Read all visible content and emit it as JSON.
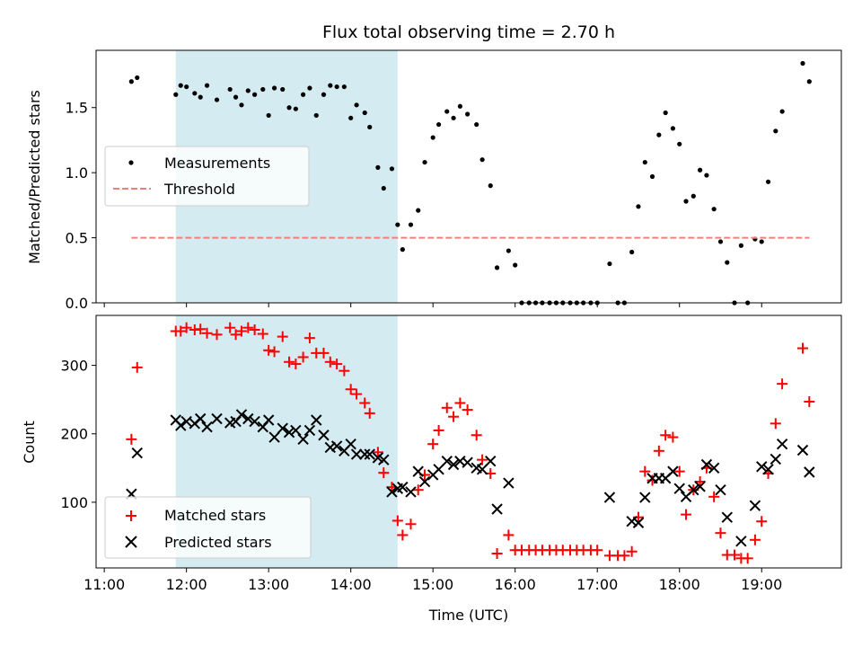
{
  "chart_data": [
    {
      "type": "scatter",
      "title": "Flux total observing time = 2.70 h",
      "xlabel": "",
      "ylabel": "Matched/Predicted stars",
      "ylim": [
        0,
        1.94
      ],
      "yticks": [
        0.0,
        0.5,
        1.0,
        1.5
      ],
      "ytick_labels": [
        "0.0",
        "0.5",
        "1.0",
        "1.5"
      ],
      "xlim_hours": [
        10.9,
        19.97
      ],
      "xticks_hours": [
        11,
        12,
        13,
        14,
        15,
        16,
        17,
        18,
        19
      ],
      "shaded_span_hours": [
        11.87,
        14.57
      ],
      "shaded_color": "#d3ebf1",
      "legend_position": "center-left",
      "series": [
        {
          "name": "Measurements",
          "marker": "dot",
          "color": "#000000",
          "x": [
            11.33,
            11.4,
            11.87,
            11.93,
            12.0,
            12.1,
            12.17,
            12.25,
            12.37,
            12.53,
            12.6,
            12.67,
            12.75,
            12.83,
            12.93,
            13.0,
            13.07,
            13.17,
            13.25,
            13.33,
            13.42,
            13.5,
            13.58,
            13.67,
            13.75,
            13.83,
            13.92,
            14.0,
            14.07,
            14.17,
            14.23,
            14.33,
            14.4,
            14.5,
            14.57,
            14.63,
            14.73,
            14.82,
            14.9,
            15.0,
            15.07,
            15.17,
            15.25,
            15.33,
            15.42,
            15.53,
            15.6,
            15.7,
            15.78,
            15.92,
            16.0,
            16.08,
            16.17,
            16.25,
            16.33,
            16.42,
            16.5,
            16.58,
            16.67,
            16.75,
            16.83,
            16.92,
            17.0,
            17.15,
            17.25,
            17.33,
            17.42,
            17.5,
            17.58,
            17.67,
            17.75,
            17.83,
            17.92,
            18.0,
            18.08,
            18.17,
            18.25,
            18.33,
            18.42,
            18.5,
            18.58,
            18.67,
            18.75,
            18.83,
            18.92,
            19.0,
            19.08,
            19.17,
            19.25,
            19.5,
            19.58
          ],
          "y": [
            1.7,
            1.73,
            1.6,
            1.67,
            1.66,
            1.61,
            1.58,
            1.67,
            1.56,
            1.64,
            1.58,
            1.52,
            1.63,
            1.6,
            1.64,
            1.44,
            1.65,
            1.64,
            1.5,
            1.49,
            1.6,
            1.65,
            1.44,
            1.6,
            1.67,
            1.66,
            1.66,
            1.42,
            1.52,
            1.46,
            1.35,
            1.04,
            0.88,
            1.03,
            0.6,
            0.41,
            0.6,
            0.71,
            1.08,
            1.27,
            1.37,
            1.47,
            1.42,
            1.51,
            1.45,
            1.37,
            1.1,
            0.9,
            0.27,
            0.4,
            0.29,
            0.0,
            0.0,
            0.0,
            0.0,
            0.0,
            0.0,
            0.0,
            0.0,
            0.0,
            0.0,
            0.0,
            0.0,
            0.3,
            0.0,
            0.0,
            0.39,
            0.74,
            1.08,
            0.97,
            1.29,
            1.46,
            1.34,
            1.22,
            0.78,
            0.82,
            1.02,
            0.98,
            0.72,
            0.47,
            0.31,
            0.0,
            0.44,
            0.0,
            0.49,
            0.47,
            0.93,
            1.32,
            1.47,
            1.84,
            1.7
          ]
        },
        {
          "name": "Threshold",
          "marker": "dashed-line",
          "color": "#f08080",
          "x": [
            11.33,
            19.58
          ],
          "y": [
            0.5,
            0.5
          ]
        }
      ]
    },
    {
      "type": "scatter",
      "xlabel": "Time (UTC)",
      "ylabel": "Count",
      "ylim": [
        4,
        373
      ],
      "yticks": [
        100,
        200,
        300
      ],
      "ytick_labels": [
        "100",
        "200",
        "300"
      ],
      "xlim_hours": [
        10.9,
        19.97
      ],
      "xticks_hours": [
        11,
        12,
        13,
        14,
        15,
        16,
        17,
        18,
        19
      ],
      "xtick_labels": [
        "11:00",
        "12:00",
        "13:00",
        "14:00",
        "15:00",
        "16:00",
        "17:00",
        "18:00",
        "19:00"
      ],
      "shaded_span_hours": [
        11.87,
        14.57
      ],
      "shaded_color": "#d3ebf1",
      "legend_position": "lower-left",
      "series": [
        {
          "name": "Matched stars",
          "marker": "plus",
          "color": "#ff0000",
          "x": [
            11.33,
            11.4,
            11.87,
            11.93,
            12.0,
            12.1,
            12.17,
            12.25,
            12.37,
            12.53,
            12.6,
            12.67,
            12.75,
            12.83,
            12.93,
            13.0,
            13.07,
            13.17,
            13.25,
            13.33,
            13.42,
            13.5,
            13.58,
            13.67,
            13.75,
            13.83,
            13.92,
            14.0,
            14.07,
            14.17,
            14.23,
            14.33,
            14.4,
            14.5,
            14.57,
            14.63,
            14.73,
            14.82,
            14.9,
            15.0,
            15.07,
            15.17,
            15.25,
            15.33,
            15.42,
            15.53,
            15.6,
            15.7,
            15.78,
            15.92,
            16.0,
            16.08,
            16.17,
            16.25,
            16.33,
            16.42,
            16.5,
            16.58,
            16.67,
            16.75,
            16.83,
            16.92,
            17.0,
            17.15,
            17.25,
            17.33,
            17.42,
            17.5,
            17.58,
            17.67,
            17.75,
            17.83,
            17.92,
            18.0,
            18.08,
            18.17,
            18.25,
            18.33,
            18.42,
            18.5,
            18.58,
            18.67,
            18.75,
            18.83,
            18.92,
            19.0,
            19.08,
            19.17,
            19.25,
            19.5,
            19.58
          ],
          "y": [
            192,
            297,
            350,
            350,
            355,
            352,
            353,
            347,
            345,
            355,
            345,
            350,
            355,
            352,
            346,
            322,
            320,
            342,
            305,
            302,
            312,
            340,
            318,
            318,
            305,
            302,
            292,
            265,
            258,
            245,
            230,
            173,
            143,
            122,
            73,
            52,
            68,
            118,
            140,
            185,
            205,
            238,
            225,
            245,
            235,
            198,
            162,
            142,
            25,
            52,
            30,
            30,
            30,
            30,
            30,
            30,
            30,
            30,
            30,
            30,
            30,
            30,
            30,
            22,
            22,
            22,
            28,
            78,
            145,
            132,
            175,
            198,
            195,
            145,
            82,
            118,
            130,
            150,
            108,
            55,
            23,
            23,
            18,
            18,
            45,
            72,
            142,
            215,
            273,
            325,
            247
          ]
        },
        {
          "name": "Predicted stars",
          "marker": "x",
          "color": "#000000",
          "x": [
            11.33,
            11.4,
            11.87,
            11.93,
            12.0,
            12.1,
            12.17,
            12.25,
            12.37,
            12.53,
            12.6,
            12.67,
            12.75,
            12.83,
            12.93,
            13.0,
            13.07,
            13.17,
            13.25,
            13.33,
            13.42,
            13.5,
            13.58,
            13.67,
            13.75,
            13.83,
            13.92,
            14.0,
            14.07,
            14.17,
            14.23,
            14.33,
            14.4,
            14.5,
            14.57,
            14.63,
            14.73,
            14.82,
            14.9,
            15.0,
            15.07,
            15.17,
            15.25,
            15.33,
            15.42,
            15.53,
            15.6,
            15.7,
            15.78,
            15.92,
            17.15,
            17.42,
            17.5,
            17.58,
            17.67,
            17.75,
            17.83,
            17.92,
            18.0,
            18.08,
            18.17,
            18.25,
            18.33,
            18.42,
            18.5,
            18.58,
            18.75,
            18.92,
            19.0,
            19.08,
            19.17,
            19.25,
            19.5,
            19.58
          ],
          "y": [
            112,
            172,
            220,
            212,
            218,
            215,
            222,
            210,
            222,
            216,
            218,
            228,
            222,
            218,
            210,
            220,
            195,
            208,
            202,
            205,
            192,
            205,
            220,
            198,
            180,
            182,
            175,
            185,
            170,
            170,
            170,
            165,
            162,
            115,
            120,
            122,
            115,
            145,
            130,
            140,
            148,
            160,
            155,
            160,
            158,
            150,
            148,
            160,
            90,
            128,
            107,
            72,
            70,
            107,
            135,
            135,
            135,
            145,
            120,
            108,
            118,
            123,
            155,
            150,
            118,
            78,
            43,
            95,
            152,
            148,
            163,
            185,
            176,
            144
          ]
        }
      ]
    }
  ]
}
